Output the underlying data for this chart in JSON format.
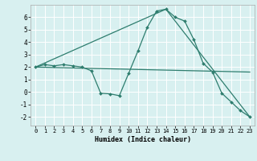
{
  "xlabel": "Humidex (Indice chaleur)",
  "bg_color": "#d8f0f0",
  "grid_color": "#ffffff",
  "line_color": "#2e7d6e",
  "xlim": [
    -0.5,
    23.5
  ],
  "ylim": [
    -2.7,
    7.0
  ],
  "yticks": [
    -2,
    -1,
    0,
    1,
    2,
    3,
    4,
    5,
    6
  ],
  "xticks": [
    0,
    1,
    2,
    3,
    4,
    5,
    6,
    7,
    8,
    9,
    10,
    11,
    12,
    13,
    14,
    15,
    16,
    17,
    18,
    19,
    20,
    21,
    22,
    23
  ],
  "series1_x": [
    0,
    1,
    2,
    3,
    4,
    5,
    6,
    7,
    8,
    9,
    10,
    11,
    12,
    13,
    14,
    15,
    16,
    17,
    18,
    19,
    20,
    21,
    22,
    23
  ],
  "series1_y": [
    2.0,
    2.2,
    2.1,
    2.2,
    2.1,
    2.0,
    1.7,
    -0.1,
    -0.15,
    -0.3,
    1.5,
    3.3,
    5.2,
    6.5,
    6.65,
    6.0,
    5.7,
    4.2,
    2.3,
    1.6,
    -0.1,
    -0.8,
    -1.5,
    -2.0
  ],
  "series2_x": [
    0,
    14,
    23
  ],
  "series2_y": [
    2.0,
    6.65,
    -2.0
  ],
  "series3_x": [
    0,
    23
  ],
  "series3_y": [
    2.0,
    1.6
  ]
}
